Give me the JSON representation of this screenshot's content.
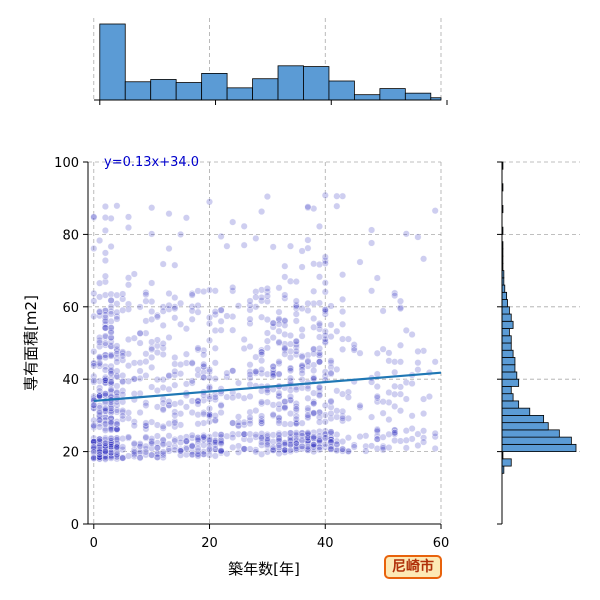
{
  "chart_data": {
    "type": "scatter",
    "xlabel": "築年数[年]",
    "ylabel": "専有面積[m2]",
    "xlim": [
      -1,
      60
    ],
    "ylim": [
      0,
      100
    ],
    "x_ticks": [
      0,
      20,
      40,
      60
    ],
    "y_ticks": [
      0,
      20,
      40,
      60,
      80,
      100
    ],
    "grid": true,
    "colors": {
      "points": "#2222bb",
      "regression": "#1f77b4",
      "histogram": "#5b9bd5",
      "equation": "#0000cc"
    },
    "regression": {
      "slope": 0.13,
      "intercept": 34.0,
      "label": "y=0.13x+34.0"
    },
    "marginal_x_histogram": {
      "bin_edges": [
        0,
        4.4,
        8.8,
        13.2,
        17.6,
        22.0,
        26.4,
        30.8,
        35.2,
        39.6,
        44.0,
        48.4,
        52.8,
        57.2,
        61.6
      ],
      "counts": [
        100,
        24,
        27,
        23,
        35,
        16,
        28,
        45,
        44,
        25,
        7,
        15,
        9,
        3
      ]
    },
    "marginal_y_histogram": {
      "bin_edges": [
        14,
        16,
        18,
        20,
        22,
        24,
        26,
        28,
        30,
        32,
        34,
        36,
        38,
        40,
        42,
        44,
        46,
        48,
        50,
        52,
        54,
        56,
        58,
        60,
        62,
        64,
        66,
        68,
        70,
        72,
        74,
        76,
        78,
        80,
        82,
        84,
        86,
        88,
        90,
        92,
        94,
        96,
        98,
        100
      ],
      "counts": [
        2,
        10,
        1,
        80,
        75,
        62,
        50,
        45,
        30,
        18,
        12,
        10,
        18,
        16,
        14,
        14,
        12,
        10,
        10,
        8,
        12,
        10,
        8,
        6,
        5,
        3,
        2,
        2,
        1,
        1,
        1,
        1,
        0,
        1,
        0,
        0,
        1,
        0,
        0,
        1,
        0,
        0,
        1
      ]
    }
  },
  "badge": {
    "label": "尼崎市",
    "bg_color": "#fde9b5",
    "border_color": "#e8620c",
    "text_color": "#b0300a"
  }
}
